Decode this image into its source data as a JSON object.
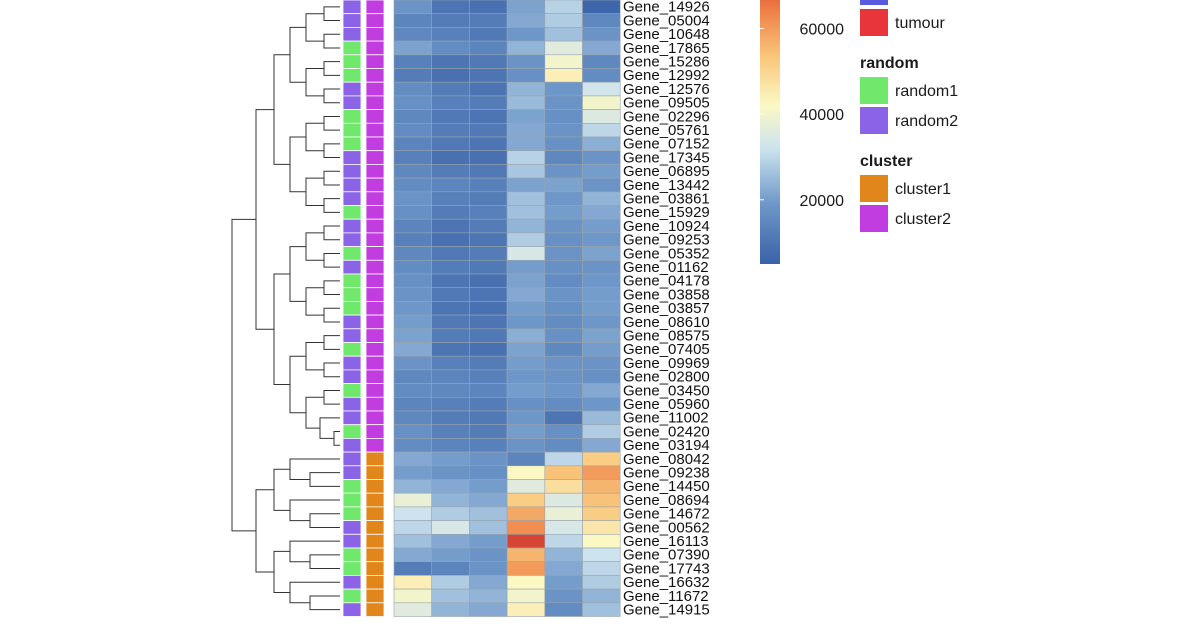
{
  "chart_data": {
    "type": "heatmap",
    "rows": [
      {
        "label": "Gene_14926",
        "random": "random2",
        "cluster": "cluster2",
        "values": [
          18000,
          10000,
          9000,
          21000,
          29000,
          6000
        ]
      },
      {
        "label": "Gene_05004",
        "random": "random2",
        "cluster": "cluster2",
        "values": [
          14000,
          12000,
          12000,
          22000,
          28000,
          15000
        ]
      },
      {
        "label": "Gene_10648",
        "random": "random2",
        "cluster": "cluster2",
        "values": [
          15000,
          13000,
          11000,
          19000,
          26000,
          18000
        ]
      },
      {
        "label": "Gene_17865",
        "random": "random1",
        "cluster": "cluster2",
        "values": [
          21000,
          16000,
          14000,
          24000,
          36000,
          22000
        ]
      },
      {
        "label": "Gene_15286",
        "random": "random1",
        "cluster": "cluster2",
        "values": [
          13000,
          10000,
          11000,
          18000,
          40000,
          15000
        ]
      },
      {
        "label": "Gene_12992",
        "random": "random1",
        "cluster": "cluster2",
        "values": [
          12000,
          9000,
          10000,
          17000,
          44000,
          16000
        ]
      },
      {
        "label": "Gene_12576",
        "random": "random2",
        "cluster": "cluster2",
        "values": [
          16000,
          12000,
          10000,
          24000,
          19000,
          33000
        ]
      },
      {
        "label": "Gene_09505",
        "random": "random2",
        "cluster": "cluster2",
        "values": [
          17000,
          13000,
          12000,
          25000,
          18000,
          40000
        ]
      },
      {
        "label": "Gene_02296",
        "random": "random1",
        "cluster": "cluster2",
        "values": [
          15000,
          11000,
          10000,
          21000,
          17000,
          35000
        ]
      },
      {
        "label": "Gene_05761",
        "random": "random1",
        "cluster": "cluster2",
        "values": [
          16000,
          12000,
          11000,
          22000,
          18000,
          30000
        ]
      },
      {
        "label": "Gene_07152",
        "random": "random1",
        "cluster": "cluster2",
        "values": [
          14000,
          11000,
          10000,
          22000,
          17000,
          23000
        ]
      },
      {
        "label": "Gene_17345",
        "random": "random2",
        "cluster": "cluster2",
        "values": [
          13000,
          9000,
          9000,
          29000,
          15000,
          18000
        ]
      },
      {
        "label": "Gene_06895",
        "random": "random2",
        "cluster": "cluster2",
        "values": [
          15000,
          12000,
          11000,
          27000,
          18000,
          20000
        ]
      },
      {
        "label": "Gene_13442",
        "random": "random2",
        "cluster": "cluster2",
        "values": [
          16000,
          14000,
          13000,
          21000,
          21000,
          18000
        ]
      },
      {
        "label": "Gene_03861",
        "random": "random2",
        "cluster": "cluster2",
        "values": [
          18000,
          13000,
          12000,
          26000,
          19000,
          24000
        ]
      },
      {
        "label": "Gene_15929",
        "random": "random1",
        "cluster": "cluster2",
        "values": [
          17000,
          12000,
          13000,
          26000,
          20000,
          22000
        ]
      },
      {
        "label": "Gene_10924",
        "random": "random2",
        "cluster": "cluster2",
        "values": [
          14000,
          10000,
          12000,
          24000,
          18000,
          20000
        ]
      },
      {
        "label": "Gene_09253",
        "random": "random2",
        "cluster": "cluster2",
        "values": [
          13000,
          9000,
          10000,
          28000,
          17000,
          19000
        ]
      },
      {
        "label": "Gene_05352",
        "random": "random1",
        "cluster": "cluster2",
        "values": [
          15000,
          11000,
          12000,
          34000,
          18000,
          21000
        ]
      },
      {
        "label": "Gene_01162",
        "random": "random2",
        "cluster": "cluster2",
        "values": [
          16000,
          12000,
          11000,
          20000,
          17000,
          18000
        ]
      },
      {
        "label": "Gene_04178",
        "random": "random1",
        "cluster": "cluster2",
        "values": [
          17000,
          10000,
          9000,
          21000,
          16000,
          19000
        ]
      },
      {
        "label": "Gene_03858",
        "random": "random1",
        "cluster": "cluster2",
        "values": [
          18000,
          11000,
          10000,
          22000,
          18000,
          20000
        ]
      },
      {
        "label": "Gene_03857",
        "random": "random1",
        "cluster": "cluster2",
        "values": [
          19000,
          10000,
          9000,
          20000,
          17000,
          20000
        ]
      },
      {
        "label": "Gene_08610",
        "random": "random2",
        "cluster": "cluster2",
        "values": [
          20000,
          11000,
          10000,
          19000,
          16000,
          19000
        ]
      },
      {
        "label": "Gene_08575",
        "random": "random2",
        "cluster": "cluster2",
        "values": [
          21000,
          12000,
          11000,
          23000,
          17000,
          21000
        ]
      },
      {
        "label": "Gene_07405",
        "random": "random1",
        "cluster": "cluster2",
        "values": [
          22000,
          10000,
          9000,
          21000,
          15000,
          20000
        ]
      },
      {
        "label": "Gene_09969",
        "random": "random2",
        "cluster": "cluster2",
        "values": [
          18000,
          13000,
          12000,
          20000,
          18000,
          18000
        ]
      },
      {
        "label": "Gene_02800",
        "random": "random2",
        "cluster": "cluster2",
        "values": [
          15000,
          14000,
          13000,
          19000,
          18000,
          17000
        ]
      },
      {
        "label": "Gene_03450",
        "random": "random1",
        "cluster": "cluster2",
        "values": [
          16000,
          15000,
          14000,
          20000,
          19000,
          22000
        ]
      },
      {
        "label": "Gene_05960",
        "random": "random2",
        "cluster": "cluster2",
        "values": [
          14000,
          13000,
          12000,
          17000,
          16000,
          19000
        ]
      },
      {
        "label": "Gene_11002",
        "random": "random2",
        "cluster": "cluster2",
        "values": [
          15000,
          12000,
          11000,
          19000,
          10000,
          25000
        ]
      },
      {
        "label": "Gene_02420",
        "random": "random1",
        "cluster": "cluster2",
        "values": [
          17000,
          13000,
          12000,
          20000,
          17000,
          28000
        ]
      },
      {
        "label": "Gene_03194",
        "random": "random2",
        "cluster": "cluster2",
        "values": [
          16000,
          14000,
          13000,
          18000,
          16000,
          22000
        ]
      },
      {
        "label": "Gene_08042",
        "random": "random2",
        "cluster": "cluster1",
        "values": [
          22000,
          20000,
          18000,
          14000,
          30000,
          52000
        ]
      },
      {
        "label": "Gene_09238",
        "random": "random2",
        "cluster": "cluster1",
        "values": [
          20000,
          18000,
          17000,
          42000,
          54000,
          60000
        ]
      },
      {
        "label": "Gene_14450",
        "random": "random1",
        "cluster": "cluster1",
        "values": [
          24000,
          22000,
          20000,
          36000,
          48000,
          56000
        ]
      },
      {
        "label": "Gene_08694",
        "random": "random1",
        "cluster": "cluster1",
        "values": [
          38000,
          24000,
          22000,
          52000,
          35000,
          54000
        ]
      },
      {
        "label": "Gene_14672",
        "random": "random1",
        "cluster": "cluster1",
        "values": [
          32000,
          28000,
          26000,
          58000,
          38000,
          52000
        ]
      },
      {
        "label": "Gene_00562",
        "random": "random2",
        "cluster": "cluster1",
        "values": [
          30000,
          34000,
          26000,
          62000,
          34000,
          46000
        ]
      },
      {
        "label": "Gene_16113",
        "random": "random2",
        "cluster": "cluster1",
        "values": [
          26000,
          22000,
          20000,
          72000,
          30000,
          42000
        ]
      },
      {
        "label": "Gene_07390",
        "random": "random1",
        "cluster": "cluster1",
        "values": [
          22000,
          20000,
          18000,
          56000,
          24000,
          32000
        ]
      },
      {
        "label": "Gene_17743",
        "random": "random1",
        "cluster": "cluster1",
        "values": [
          12000,
          14000,
          18000,
          60000,
          22000,
          30000
        ]
      },
      {
        "label": "Gene_16632",
        "random": "random2",
        "cluster": "cluster1",
        "values": [
          44000,
          28000,
          22000,
          42000,
          20000,
          28000
        ]
      },
      {
        "label": "Gene_11672",
        "random": "random1",
        "cluster": "cluster1",
        "values": [
          40000,
          26000,
          24000,
          40000,
          18000,
          24000
        ]
      },
      {
        "label": "Gene_14915",
        "random": "random2",
        "cluster": "cluster1",
        "values": [
          36000,
          24000,
          22000,
          44000,
          16000,
          26000
        ]
      }
    ],
    "colorbar": {
      "ticks": [
        20000,
        40000,
        60000
      ]
    },
    "legends": [
      {
        "title": "",
        "items": [
          {
            "label": "tumour",
            "color": "#e8353b"
          }
        ]
      },
      {
        "title": "random",
        "items": [
          {
            "label": "random1",
            "color": "#6fe86b"
          },
          {
            "label": "random2",
            "color": "#8b63e6"
          }
        ]
      },
      {
        "title": "cluster",
        "items": [
          {
            "label": "cluster1",
            "color": "#e0861a"
          },
          {
            "label": "cluster2",
            "color": "#c13ddf"
          }
        ]
      }
    ]
  }
}
